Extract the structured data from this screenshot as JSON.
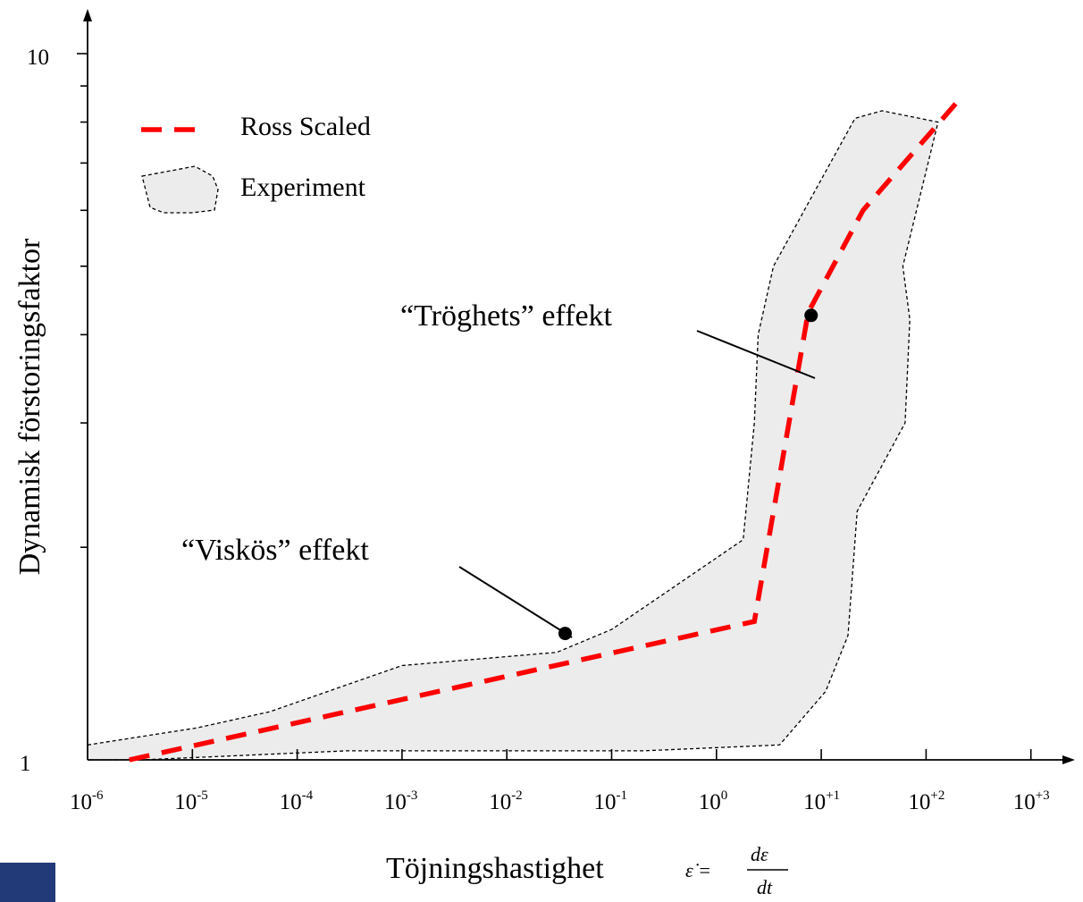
{
  "colors": {
    "ross": "#ff0000",
    "experiment_fill": "#ececec",
    "axis": "#000000",
    "corner_block": "#233a78"
  },
  "chart_data": {
    "type": "line",
    "x_scale": "log",
    "y_scale": "log",
    "xlim": [
      1e-06,
      1000
    ],
    "ylim": [
      1,
      10
    ],
    "title": "",
    "xlabel": "Töjningshastighet",
    "xlabel_formula": {
      "lhs": "ε̇ =",
      "numerator": "dε",
      "denominator": "dt"
    },
    "ylabel": "Dynamisk förstoringsfaktor",
    "y_tick_labels": [
      {
        "value": 1,
        "label": "1"
      },
      {
        "value": 10,
        "label": "10"
      }
    ],
    "y_minor_ticks": [
      2,
      3,
      4,
      5,
      6,
      7,
      8,
      9
    ],
    "x_ticks": [
      {
        "value": 1e-06,
        "base": "10",
        "exp": "-6"
      },
      {
        "value": 1e-05,
        "base": "10",
        "exp": "-5"
      },
      {
        "value": 0.0001,
        "base": "10",
        "exp": "-4"
      },
      {
        "value": 0.001,
        "base": "10",
        "exp": "-3"
      },
      {
        "value": 0.01,
        "base": "10",
        "exp": "-2"
      },
      {
        "value": 0.1,
        "base": "10",
        "exp": "-1"
      },
      {
        "value": 1,
        "base": "10",
        "exp": "0"
      },
      {
        "value": 10,
        "base": "10",
        "exp": "+1"
      },
      {
        "value": 100,
        "base": "10",
        "exp": "+2"
      },
      {
        "value": 1000,
        "base": "10",
        "exp": "+3"
      }
    ],
    "legend_position": "top-left",
    "series": [
      {
        "name": "Ross Scaled",
        "style": "dashed",
        "color": "#ff0000",
        "x": [
          2.5e-06,
          2.3,
          7.5,
          25,
          100,
          220
        ],
        "y": [
          1.0,
          1.57,
          4.3,
          6.0,
          7.6,
          8.7
        ]
      }
    ],
    "regions": [
      {
        "name": "Experiment",
        "style": "dotted-outline-filled",
        "x": [
          1e-06,
          1.11e-05,
          5.5e-05,
          0.001,
          0.03,
          0.1,
          1.8,
          2.3,
          2.5,
          3.5,
          21,
          38,
          130,
          60,
          70,
          63,
          22,
          18,
          11,
          4,
          0.2,
          0.000295,
          3.3e-06,
          1e-06
        ],
        "y": [
          1.05,
          1.11,
          1.17,
          1.36,
          1.42,
          1.53,
          2.05,
          3.0,
          4.0,
          5.0,
          8.1,
          8.3,
          8.0,
          5.0,
          4.2,
          3.0,
          2.25,
          1.5,
          1.25,
          1.05,
          1.03,
          1.03,
          1.0,
          1.0
        ]
      }
    ],
    "annotations": [
      {
        "text": "“Tröghets” effekt",
        "point": {
          "x": 8,
          "y": 4.26
        }
      },
      {
        "text": "“Viskös” effekt",
        "point": {
          "x": 0.036,
          "y": 1.51
        }
      }
    ]
  }
}
